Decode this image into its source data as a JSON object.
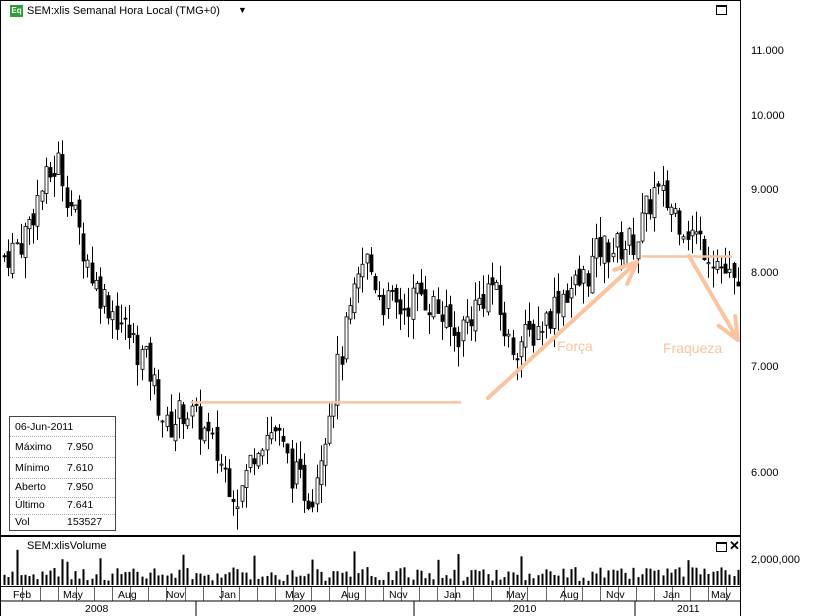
{
  "chart": {
    "icon_text": "Eq",
    "title": "SEM:xlis Semanal Hora Local (TMG+0)",
    "volume_title": "SEM:xlisVolume"
  },
  "price_axis": {
    "labels": [
      "11.000",
      "10.000",
      "9.000",
      "8.000",
      "7.000",
      "6.000"
    ],
    "values": [
      11,
      10,
      9,
      8,
      7,
      6
    ],
    "scale": "log"
  },
  "volume_axis": {
    "labels": [
      "2,000,000"
    ]
  },
  "time_axis": {
    "months": [
      "Feb",
      "May",
      "Aug",
      "Nov",
      "Jan",
      "May",
      "Aug",
      "Nov",
      "Jan",
      "May",
      "Aug",
      "Nov",
      "Jan",
      "May"
    ],
    "years": [
      "2008",
      "2009",
      "2010",
      "2011"
    ]
  },
  "info_box": {
    "date": "06-Jun-2011",
    "rows": [
      {
        "label": "Máximo",
        "value": "7.950"
      },
      {
        "label": "Mínimo",
        "value": "7.610"
      },
      {
        "label": "Aberto",
        "value": "7.950"
      },
      {
        "label": "Último",
        "value": "7.641"
      },
      {
        "label": "Vol",
        "value": "153527"
      }
    ]
  },
  "annotations": {
    "strength": "Força",
    "weakness": "Fraqueza"
  },
  "colors": {
    "annotation": "#fbc39e",
    "candle_up": "#ffffff",
    "candle_down": "#000000",
    "icon": "#2e9e3c"
  },
  "chart_data": {
    "type": "candlestick",
    "title": "SEM:xlis Semanal Hora Local (TMG+0)",
    "scale": "log",
    "ylim": [
      5.5,
      11.8
    ],
    "close_path": [
      [
        "2008-01",
        8.2
      ],
      [
        "2008-02",
        8.4
      ],
      [
        "2008-03",
        9.0
      ],
      [
        "2008-04",
        9.4
      ],
      [
        "2008-05",
        8.6
      ],
      [
        "2008-06",
        7.9
      ],
      [
        "2008-07",
        7.6
      ],
      [
        "2008-08",
        7.3
      ],
      [
        "2008-09",
        7.0
      ],
      [
        "2008-10",
        6.4
      ],
      [
        "2008-11",
        6.6
      ],
      [
        "2008-12",
        6.4
      ],
      [
        "2009-01",
        6.1
      ],
      [
        "2009-02",
        5.8
      ],
      [
        "2009-03",
        6.3
      ],
      [
        "2009-04",
        6.4
      ],
      [
        "2009-05",
        6.0
      ],
      [
        "2009-06",
        5.8
      ],
      [
        "2009-07",
        6.6
      ],
      [
        "2009-08",
        7.4
      ],
      [
        "2009-09",
        8.2
      ],
      [
        "2009-10",
        7.7
      ],
      [
        "2009-11",
        7.6
      ],
      [
        "2009-12",
        7.8
      ],
      [
        "2010-01",
        7.6
      ],
      [
        "2010-02",
        7.3
      ],
      [
        "2010-03",
        7.6
      ],
      [
        "2010-04",
        7.9
      ],
      [
        "2010-05",
        7.2
      ],
      [
        "2010-06",
        7.3
      ],
      [
        "2010-07",
        7.5
      ],
      [
        "2010-08",
        7.8
      ],
      [
        "2010-09",
        7.9
      ],
      [
        "2010-10",
        8.3
      ],
      [
        "2010-11",
        8.3
      ],
      [
        "2010-12",
        8.4
      ],
      [
        "2011-01",
        9.0
      ],
      [
        "2011-02",
        8.8
      ],
      [
        "2011-03",
        8.5
      ],
      [
        "2011-04",
        8.3
      ],
      [
        "2011-05",
        8.0
      ],
      [
        "2011-06",
        7.64
      ]
    ],
    "horizontal_lines": [
      {
        "value": 6.65,
        "from": "2008-11",
        "to": "2010-02"
      },
      {
        "value": 8.2,
        "from": "2010-12",
        "to": "2011-05"
      }
    ],
    "volume_axis_label": "2,000,000"
  }
}
